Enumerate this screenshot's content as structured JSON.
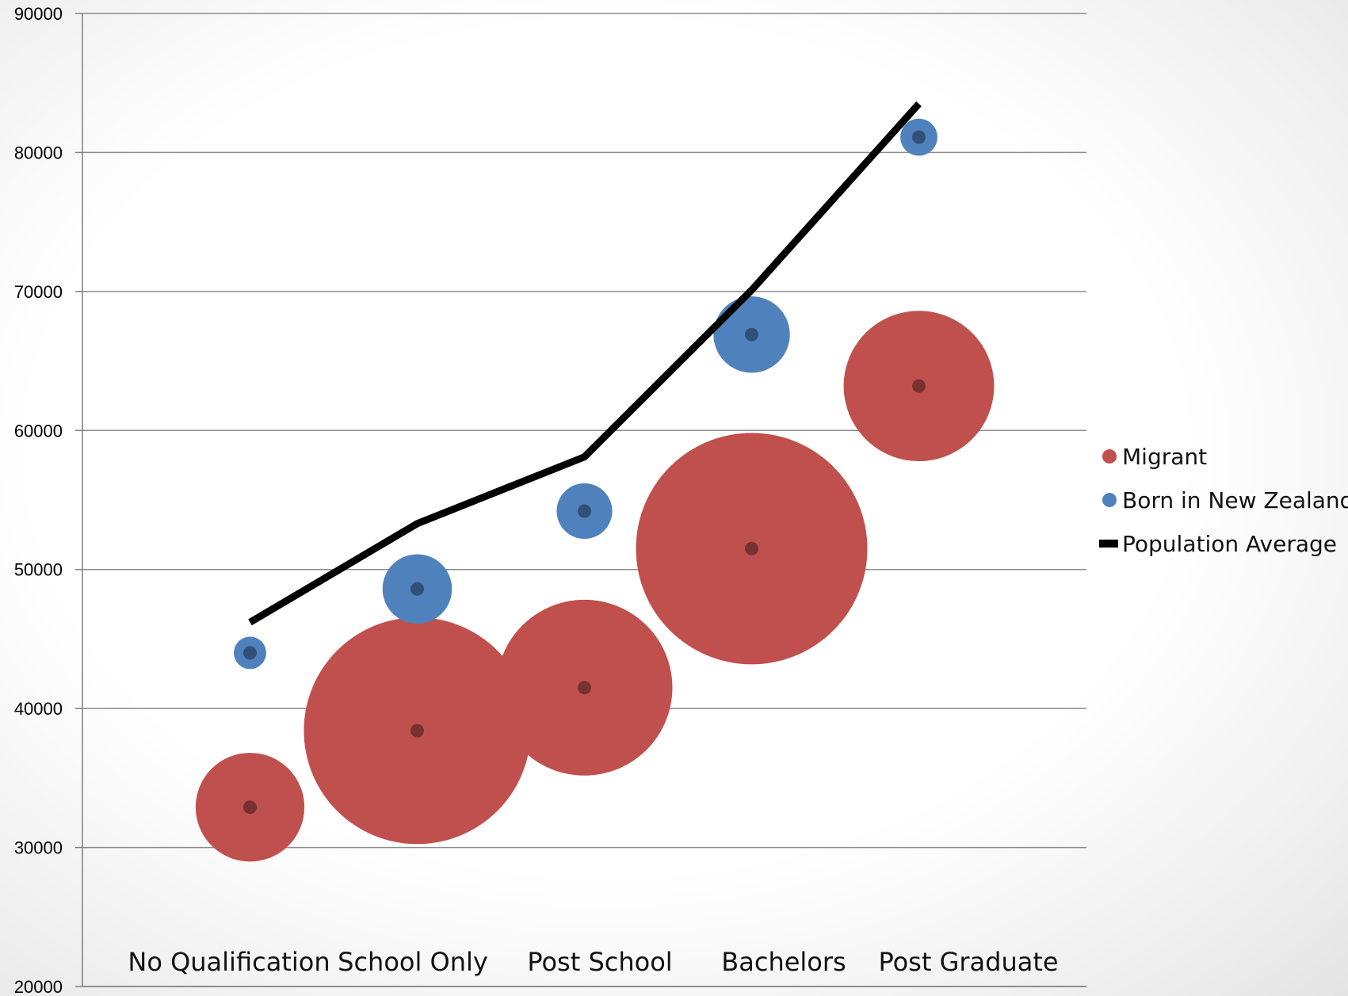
{
  "chart_data": {
    "type": "bubble",
    "title": "",
    "categories": [
      "No Qualification",
      "School Only",
      "Post School",
      "Bachelors",
      "Post Graduate"
    ],
    "ylim": [
      20000,
      90000
    ],
    "yticks": [
      20000,
      30000,
      40000,
      50000,
      60000,
      70000,
      80000,
      90000
    ],
    "grid": true,
    "legend_position": "right",
    "series": [
      {
        "name": "Migrant",
        "kind": "bubble",
        "color": "#c0504d",
        "values": [
          32900,
          38400,
          41500,
          51500,
          63200
        ],
        "relative_size": [
          0.47,
          0.98,
          0.76,
          1.0,
          0.65
        ]
      },
      {
        "name": "Born in New Zealand",
        "kind": "bubble",
        "color": "#4f81bd",
        "values": [
          44000,
          48600,
          54200,
          66900,
          81100
        ],
        "relative_size": [
          0.14,
          0.3,
          0.24,
          0.33,
          0.16
        ]
      },
      {
        "name": "Population Average",
        "kind": "line",
        "color": "#000000",
        "values": [
          46200,
          53300,
          58100,
          70100,
          83500
        ]
      }
    ]
  }
}
